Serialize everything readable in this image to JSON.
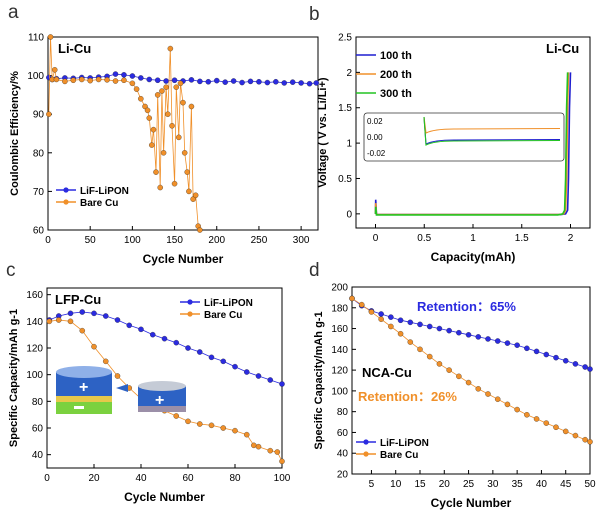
{
  "chart_data": [
    {
      "panel": "a",
      "type": "scatter",
      "annotation": "Li-Cu",
      "xlabel": "Cycle Number",
      "ylabel": "Coulombic Efficiency/%",
      "xlim": [
        0,
        320
      ],
      "ylim": [
        60,
        110
      ],
      "xticks": [
        0,
        50,
        100,
        150,
        200,
        250,
        300
      ],
      "yticks": [
        60,
        70,
        80,
        90,
        100,
        110
      ],
      "legend_position": "bottom-left",
      "series": [
        {
          "name": "LiF-LiPON",
          "color": "#2b2be0",
          "marker": "circle",
          "x": [
            1,
            5,
            10,
            20,
            30,
            40,
            50,
            60,
            70,
            80,
            90,
            100,
            110,
            120,
            130,
            140,
            150,
            160,
            170,
            180,
            190,
            200,
            210,
            220,
            230,
            240,
            250,
            260,
            270,
            280,
            290,
            300,
            310,
            318
          ],
          "y": [
            99.5,
            99.0,
            99.2,
            99.4,
            99.3,
            99.5,
            99.4,
            99.6,
            99.8,
            100.4,
            100.2,
            99.9,
            99.4,
            99.0,
            98.8,
            98.6,
            98.8,
            98.6,
            98.9,
            98.5,
            98.4,
            98.7,
            98.3,
            98.6,
            98.2,
            98.5,
            98.4,
            98.2,
            98.4,
            98.1,
            98.3,
            98.1,
            97.9,
            98.1
          ]
        },
        {
          "name": "Bare Cu",
          "color": "#f0902a",
          "marker": "circle",
          "x": [
            1,
            3,
            5,
            8,
            10,
            20,
            30,
            40,
            50,
            60,
            70,
            80,
            90,
            100,
            105,
            110,
            115,
            118,
            120,
            123,
            125,
            128,
            130,
            133,
            135,
            137,
            140,
            142,
            145,
            147,
            150,
            152,
            155,
            157,
            160,
            162,
            165,
            167,
            170,
            172,
            175,
            178,
            180
          ],
          "y": [
            90,
            110,
            99,
            101.5,
            99,
            98.5,
            98.8,
            99,
            98.7,
            99,
            98.9,
            98.6,
            98.8,
            98,
            96.5,
            94,
            92,
            91,
            89,
            82,
            86,
            75,
            95,
            71,
            96,
            80,
            97,
            90,
            107,
            87,
            72,
            97,
            84,
            98,
            93,
            80,
            75,
            70,
            92,
            68,
            69,
            61,
            60
          ]
        }
      ]
    },
    {
      "panel": "b",
      "type": "line",
      "annotation": "Li-Cu",
      "xlabel": "Capacity(mAh)",
      "ylabel": "Voltage ( V vs. Li/Li+)",
      "xlim": [
        -0.2,
        2.2
      ],
      "ylim": [
        -0.2,
        2.5
      ],
      "xticks": [
        0.0,
        0.5,
        1.0,
        1.5,
        2.0
      ],
      "yticks": [
        0.0,
        0.5,
        1.0,
        1.5,
        2.0,
        2.5
      ],
      "legend_position": "top-left",
      "inset_yticks": [
        "0.02",
        "0.00",
        "-0.02"
      ],
      "series": [
        {
          "name": "100 th",
          "color": "#1f1fd0",
          "x": [
            0,
            0.002,
            0.01,
            0.4,
            1.0,
            1.5,
            1.9,
            1.95,
            1.97,
            1.98,
            1.99,
            2.0
          ],
          "y": [
            0.0,
            0.2,
            -0.01,
            -0.01,
            -0.01,
            -0.01,
            -0.01,
            0.0,
            0.05,
            0.5,
            1.5,
            2.0
          ]
        },
        {
          "name": "200 th",
          "color": "#f0902a",
          "x": [
            0,
            0.002,
            0.01,
            0.4,
            1.0,
            1.5,
            1.88,
            1.93,
            1.95,
            1.96,
            1.97,
            1.98
          ],
          "y": [
            0.0,
            0.15,
            -0.01,
            -0.01,
            -0.01,
            -0.01,
            -0.01,
            0.0,
            0.05,
            0.5,
            1.5,
            2.0
          ]
        },
        {
          "name": "300 th",
          "color": "#22c322",
          "x": [
            0,
            0.002,
            0.01,
            0.4,
            1.0,
            1.5,
            1.87,
            1.92,
            1.94,
            1.95,
            1.96,
            1.97
          ],
          "y": [
            0.0,
            0.1,
            -0.015,
            -0.015,
            -0.015,
            -0.015,
            -0.015,
            0.0,
            0.05,
            0.5,
            1.5,
            2.0
          ]
        }
      ]
    },
    {
      "panel": "c",
      "type": "scatter",
      "annotation": "LFP-Cu",
      "xlabel": "Cycle Number",
      "ylabel": "Specific Capacity/mAh g-1",
      "xlim": [
        0,
        100
      ],
      "ylim": [
        30,
        165
      ],
      "xticks": [
        0,
        20,
        40,
        60,
        80,
        100
      ],
      "yticks": [
        40,
        60,
        80,
        100,
        120,
        140,
        160
      ],
      "legend_position": "top-right",
      "series": [
        {
          "name": "LiF-LiPON",
          "color": "#2b2be0",
          "marker": "circle",
          "x": [
            1,
            5,
            10,
            15,
            20,
            25,
            30,
            35,
            40,
            45,
            50,
            55,
            60,
            65,
            70,
            75,
            80,
            85,
            90,
            95,
            100
          ],
          "y": [
            141,
            144,
            146,
            147,
            146,
            144,
            141,
            137,
            134,
            130,
            127,
            124,
            120,
            117,
            113,
            110,
            106,
            102,
            99,
            96,
            93
          ]
        },
        {
          "name": "Bare  Cu",
          "color": "#f0902a",
          "marker": "circle",
          "x": [
            1,
            5,
            10,
            15,
            20,
            25,
            30,
            35,
            40,
            45,
            50,
            55,
            60,
            65,
            70,
            75,
            80,
            85,
            88,
            90,
            95,
            98,
            100
          ],
          "y": [
            140,
            141,
            140,
            133,
            121,
            110,
            99,
            90,
            82,
            76,
            73,
            69,
            65,
            63,
            62,
            60,
            58,
            55,
            47,
            46,
            43,
            42,
            35
          ]
        }
      ]
    },
    {
      "panel": "d",
      "type": "scatter",
      "annotation": "NCA-Cu",
      "xlabel": "Cycle Number",
      "ylabel": "Specific Capacity/mAh g-1",
      "xlim": [
        1,
        50
      ],
      "ylim": [
        20,
        200
      ],
      "xticks": [
        5,
        10,
        15,
        20,
        25,
        30,
        35,
        40,
        45,
        50
      ],
      "yticks": [
        20,
        40,
        60,
        80,
        100,
        120,
        140,
        160,
        180,
        200
      ],
      "legend_position": "bottom-left",
      "text_annotations": [
        {
          "text": "Retention：65%",
          "color": "#2b2be0"
        },
        {
          "text": "Retention：26%",
          "color": "#f0902a"
        }
      ],
      "series": [
        {
          "name": "LiF-LiPON",
          "color": "#2b2be0",
          "marker": "circle",
          "x": [
            1,
            3,
            5,
            7,
            9,
            11,
            13,
            15,
            17,
            19,
            21,
            23,
            25,
            27,
            29,
            31,
            33,
            35,
            37,
            39,
            41,
            43,
            45,
            47,
            49,
            50
          ],
          "y": [
            189,
            182,
            177,
            174,
            171,
            168,
            166,
            164,
            162,
            160,
            158,
            156,
            154,
            152,
            150,
            148,
            146,
            144,
            141,
            138,
            135,
            132,
            129,
            126,
            123,
            121
          ]
        },
        {
          "name": "Bare Cu",
          "color": "#f0902a",
          "marker": "circle",
          "x": [
            1,
            3,
            5,
            7,
            9,
            11,
            13,
            15,
            17,
            19,
            21,
            23,
            25,
            27,
            29,
            31,
            33,
            35,
            37,
            39,
            41,
            43,
            45,
            47,
            49,
            50
          ],
          "y": [
            189,
            183,
            176,
            169,
            162,
            155,
            147,
            140,
            133,
            126,
            120,
            114,
            108,
            102,
            97,
            92,
            87,
            82,
            77,
            73,
            69,
            65,
            61,
            57,
            53,
            51
          ]
        }
      ]
    }
  ]
}
